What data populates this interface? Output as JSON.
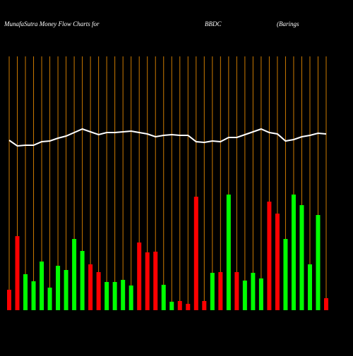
{
  "chart_data": {
    "type": "bar",
    "title": "MunafaSutra  Money Flow  Charts for",
    "subtitle": "BBDC",
    "note": "(Barings",
    "categories": [
      null,
      null,
      null,
      null,
      null,
      null,
      null,
      null,
      null,
      null,
      null,
      null,
      null,
      null,
      null,
      null,
      null,
      null,
      null,
      null,
      null,
      null,
      null,
      null,
      null,
      null,
      null,
      null,
      null,
      null,
      null,
      null,
      null,
      null,
      null,
      null,
      null,
      null,
      null,
      null
    ],
    "values": [
      29,
      105,
      51,
      41,
      69,
      32,
      63,
      57,
      101,
      84,
      65,
      54,
      40,
      40,
      43,
      35,
      96,
      82,
      83,
      36,
      12,
      13,
      9,
      161,
      13,
      53,
      54,
      164,
      54,
      42,
      53,
      45,
      154,
      137,
      101,
      164,
      149,
      65,
      135,
      17
    ],
    "colors": [
      "#ff0000",
      "#ff0000",
      "#00ff00",
      "#00ff00",
      "#00ff00",
      "#00ff00",
      "#00ff00",
      "#00ff00",
      "#00ff00",
      "#00ff00",
      "#ff0000",
      "#ff0000",
      "#00ff00",
      "#00ff00",
      "#00ff00",
      "#00ff00",
      "#ff0000",
      "#ff0000",
      "#ff0000",
      "#00ff00",
      "#00ff00",
      "#ff0000",
      "#ff0000",
      "#ff0000",
      "#ff0000",
      "#00ff00",
      "#ff0000",
      "#00ff00",
      "#ff0000",
      "#00ff00",
      "#00ff00",
      "#00ff00",
      "#ff0000",
      "#ff0000",
      "#00ff00",
      "#00ff00",
      "#00ff00",
      "#00ff00",
      "#00ff00",
      "#ff0000"
    ],
    "line": {
      "color": "#ffffff",
      "values": [
        241,
        233,
        234,
        234,
        239,
        240,
        244,
        247,
        252,
        257,
        253,
        249,
        252,
        252,
        253,
        254,
        252,
        250,
        246,
        248,
        249,
        248,
        248,
        239,
        238,
        240,
        239,
        245,
        245,
        249,
        253,
        257,
        252,
        250,
        240,
        242,
        246,
        248,
        251,
        250
      ]
    },
    "ylim": [
      0,
      360
    ],
    "grid": true,
    "grid_color": "#cc7a00"
  }
}
